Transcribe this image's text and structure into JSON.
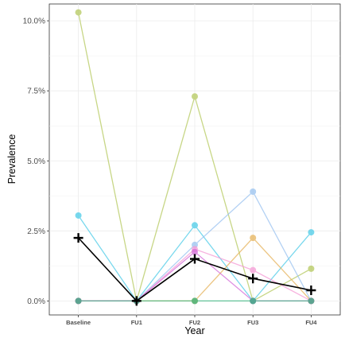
{
  "chart_data": {
    "type": "line",
    "title": "",
    "xlabel": "Year",
    "ylabel": "Prevalence",
    "categories": [
      "Baseline",
      "FU1",
      "FU2",
      "FU3",
      "FU4"
    ],
    "y_ticks": [
      0,
      2.5,
      5,
      7.5,
      10
    ],
    "y_tick_labels": [
      "0.0%",
      "2.5%",
      "5.0%",
      "7.5%",
      "10.0%"
    ],
    "ylim": [
      -0.5,
      10.6
    ],
    "grid": true,
    "legend": "none",
    "series": [
      {
        "color": "#b5c95e",
        "values": [
          10.3,
          0,
          7.3,
          0,
          1.15
        ]
      },
      {
        "color": "#4ccbe8",
        "values": [
          3.05,
          0,
          2.7,
          0,
          2.45
        ]
      },
      {
        "color": "#99c2f0",
        "values": [
          0,
          0,
          2.0,
          3.9,
          0
        ]
      },
      {
        "color": "#e6b35c",
        "values": [
          0,
          0,
          0,
          2.25,
          0
        ]
      },
      {
        "color": "#f59ad5",
        "values": [
          0,
          0,
          1.85,
          1.1,
          0
        ]
      },
      {
        "color": "#d46ad9",
        "values": [
          0,
          0,
          1.75,
          0,
          0
        ]
      },
      {
        "color": "#33b27a",
        "values": [
          0,
          0,
          0,
          0,
          0
        ]
      }
    ],
    "mean_series": {
      "color": "#000000",
      "marker": "plus",
      "values": [
        2.25,
        0,
        1.5,
        0.8,
        0.38
      ]
    }
  }
}
